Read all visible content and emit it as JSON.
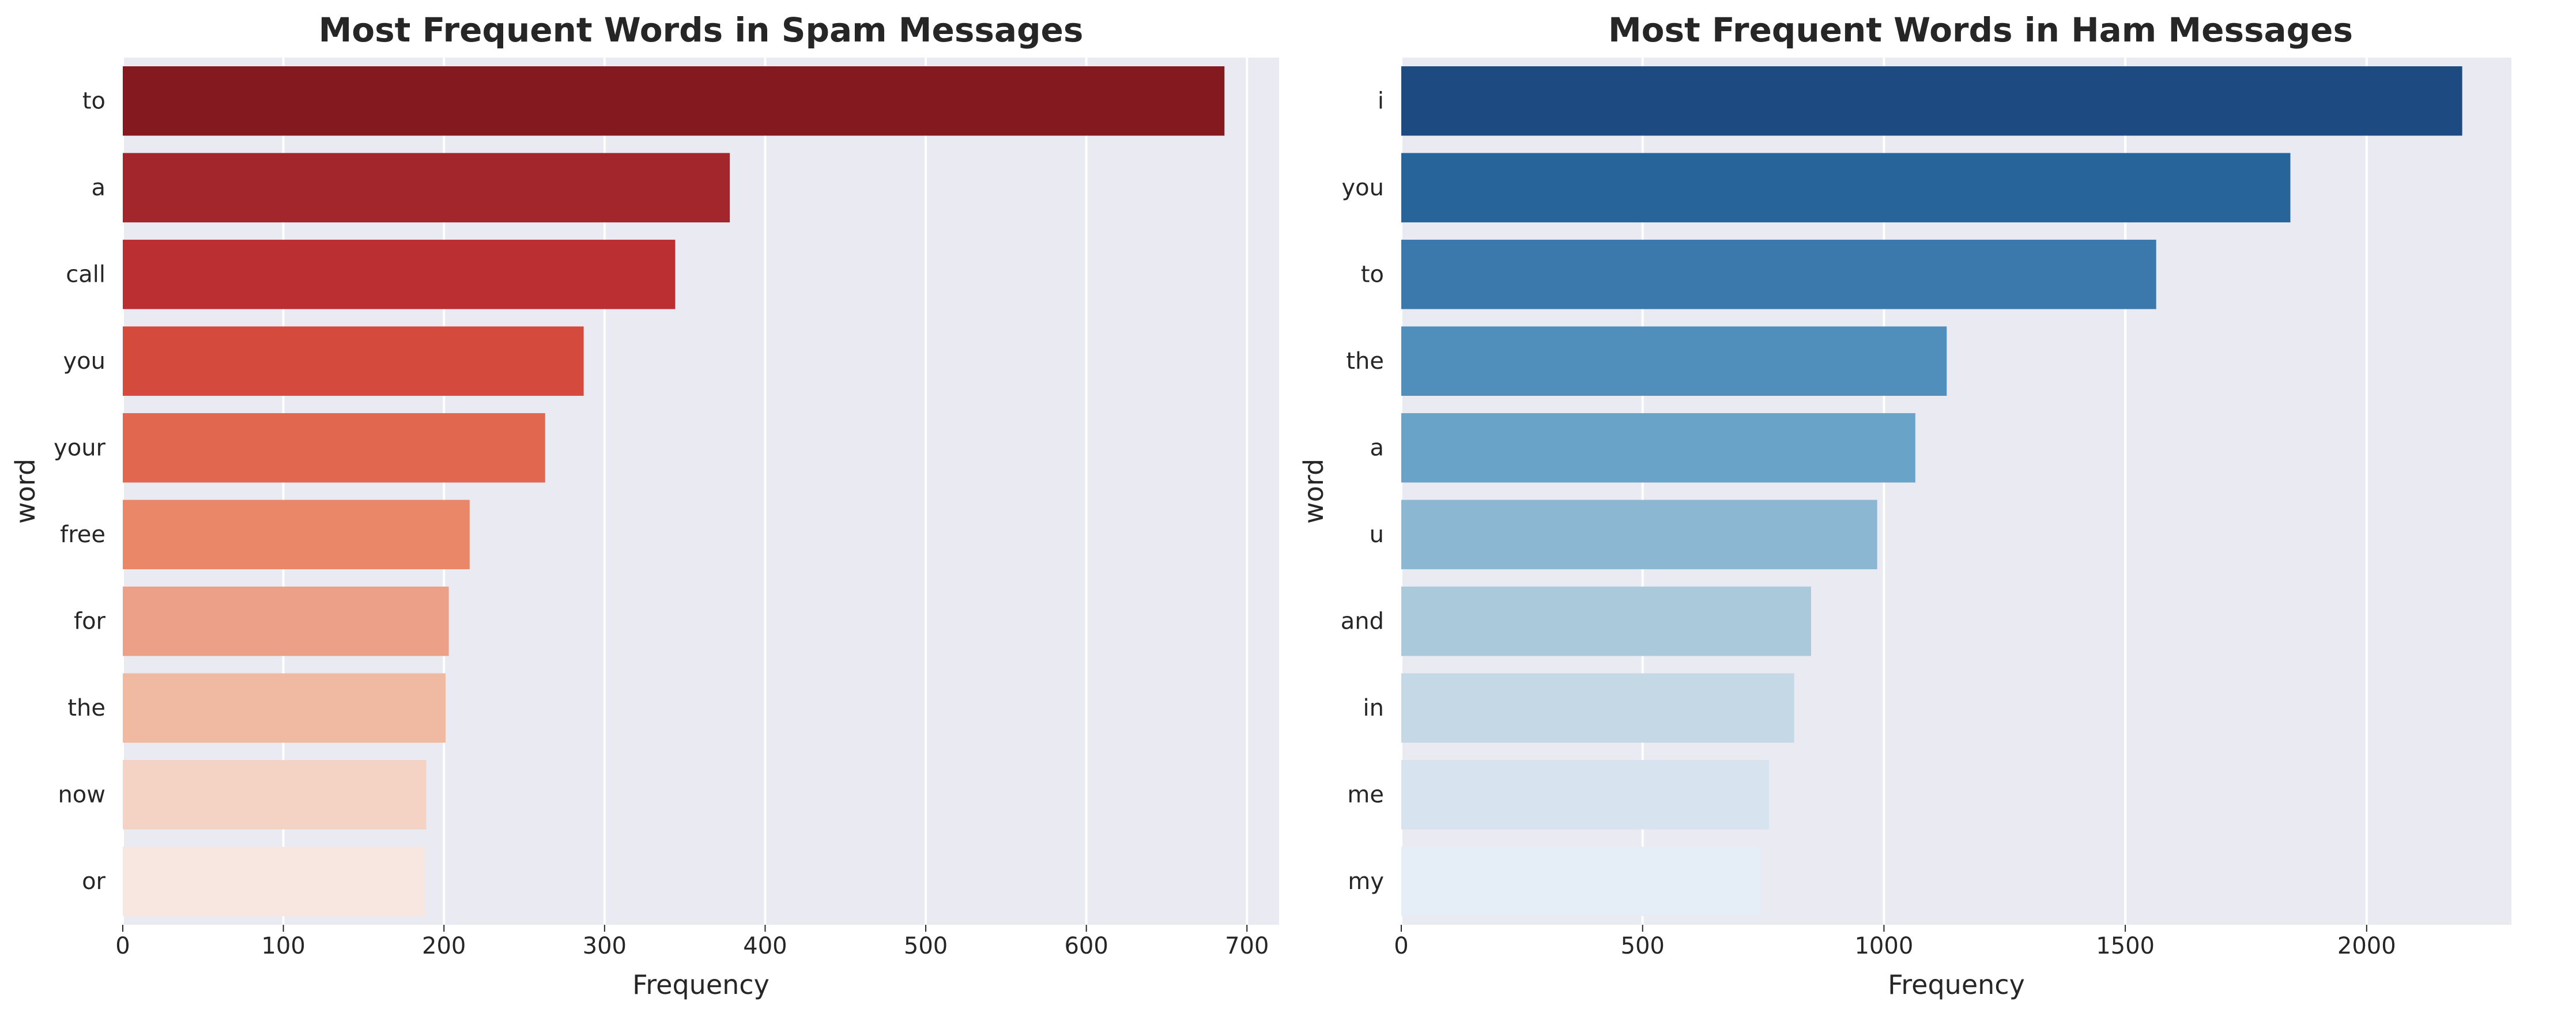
{
  "chart_data": [
    {
      "type": "bar",
      "orientation": "horizontal",
      "title": "Most Frequent Words in Spam Messages",
      "xlabel": "Frequency",
      "ylabel": "word",
      "categories": [
        "to",
        "a",
        "call",
        "you",
        "your",
        "free",
        "for",
        "the",
        "now",
        "or"
      ],
      "values": [
        686,
        378,
        344,
        287,
        263,
        216,
        203,
        201,
        189,
        188
      ],
      "xlim": [
        0,
        720
      ],
      "xticks": [
        0,
        100,
        200,
        300,
        400,
        500,
        600,
        700
      ],
      "grid": true,
      "legend": "none",
      "background_color": "#eaeaf2",
      "colors": [
        "#84191f",
        "#a2262b",
        "#bb2f33",
        "#d44b3e",
        "#e2674f",
        "#eb8769",
        "#eda088",
        "#f0b9a1",
        "#f4d3c5",
        "#f8e7e0"
      ]
    },
    {
      "type": "bar",
      "orientation": "horizontal",
      "title": "Most Frequent Words in Ham Messages",
      "xlabel": "Frequency",
      "ylabel": "word",
      "categories": [
        "i",
        "you",
        "to",
        "the",
        "a",
        "u",
        "and",
        "in",
        "me",
        "my"
      ],
      "values": [
        2198,
        1842,
        1564,
        1130,
        1065,
        986,
        849,
        814,
        762,
        745
      ],
      "xlim": [
        0,
        2300
      ],
      "xticks": [
        0,
        500,
        1000,
        1500,
        2000
      ],
      "grid": true,
      "legend": "none",
      "background_color": "#eaeaf2",
      "colors": [
        "#1d4a80",
        "#27649a",
        "#3b78ab",
        "#508ebb",
        "#6aa3c8",
        "#8cb7d2",
        "#aac9da",
        "#c5d8e6",
        "#d7e3ef",
        "#e5edf6"
      ]
    }
  ]
}
